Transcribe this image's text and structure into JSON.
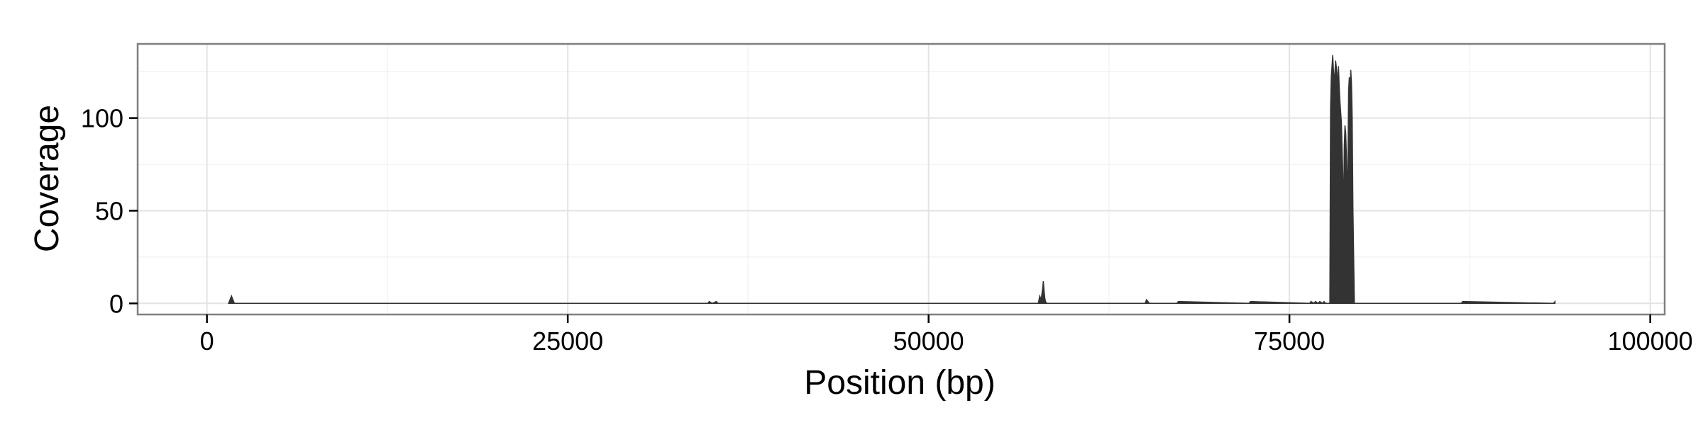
{
  "chart_data": {
    "type": "area",
    "xlabel": "Position (bp)",
    "ylabel": "Coverage",
    "xlim": [
      -4800,
      101000
    ],
    "ylim": [
      -6,
      140
    ],
    "x_ticks": [
      0,
      25000,
      50000,
      75000,
      100000
    ],
    "x_tick_labels": [
      "0",
      "25000",
      "50000",
      "75000",
      "100000"
    ],
    "y_ticks": [
      0,
      50,
      100
    ],
    "y_tick_labels": [
      "0",
      "50",
      "100"
    ],
    "grid": true,
    "colors": {
      "fill": "#333333",
      "panel_border": "#7f7f7f",
      "grid_major": "#e3e3e3",
      "grid_minor": "#f3f3f3"
    },
    "series": [
      {
        "x": [
          1500,
          1600,
          1650,
          1700,
          1750,
          1800,
          1850,
          1900,
          34700,
          34800,
          35000,
          35300,
          35400,
          57600,
          57700,
          57800,
          57900,
          57950,
          58000,
          58050,
          58100,
          58200,
          65000,
          65100,
          65200,
          65300,
          67200,
          67300,
          72200,
          72300,
          76400,
          76500,
          76700,
          76800,
          77000,
          77100,
          77300,
          77400,
          77500,
          77600,
          77800,
          77850,
          77900,
          78000,
          78050,
          78100,
          78200,
          78300,
          78350,
          78400,
          78450,
          78500,
          78600,
          78700,
          78750,
          78800,
          78850,
          78900,
          78950,
          79000,
          79050,
          79100,
          79150,
          79200,
          79250,
          79300,
          79350,
          79400,
          79500,
          86900,
          87000,
          93300,
          93400
        ],
        "y": [
          0,
          2,
          3,
          4,
          3,
          2,
          1,
          0,
          0,
          1,
          0,
          1,
          0,
          0,
          4,
          2,
          8,
          12,
          7,
          3,
          1,
          0,
          0,
          2,
          1,
          0,
          0,
          1,
          0,
          1,
          0,
          1,
          0,
          1,
          0,
          1,
          0,
          1,
          0,
          0,
          0,
          105,
          122,
          134,
          126,
          118,
          131,
          124,
          112,
          128,
          117,
          109,
          98,
          70,
          40,
          85,
          96,
          92,
          80,
          60,
          72,
          115,
          122,
          110,
          126,
          119,
          100,
          52,
          0,
          0,
          1,
          0,
          1
        ]
      }
    ]
  }
}
